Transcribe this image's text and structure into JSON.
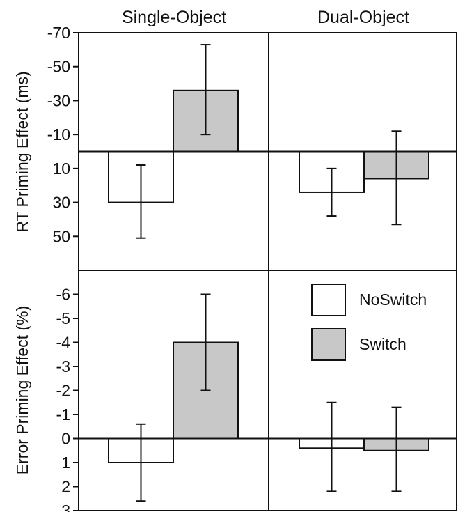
{
  "chart_data": {
    "type": "bar",
    "column_titles": [
      "Single-Object",
      "Dual-Object"
    ],
    "legend": {
      "placement": "upper-right of bottom-right panel",
      "entries": [
        {
          "name": "NoSwitch",
          "color": "#ffffff"
        },
        {
          "name": "Switch",
          "color": "#c8c8c8"
        }
      ]
    },
    "panels": [
      {
        "ylabel": "RT Priming Effect (ms)",
        "ylim": [
          -70,
          70
        ],
        "inverted": true,
        "yticks": [
          -70,
          -50,
          -30,
          -10,
          10,
          30,
          50
        ],
        "ytick_labels": [
          "-70",
          "-50",
          "-30",
          "-10",
          "10",
          "30",
          "50"
        ],
        "groups": [
          {
            "name": "Single-Object",
            "series": [
              {
                "name": "NoSwitch",
                "value": 30,
                "err_low": 51,
                "err_high": 8
              },
              {
                "name": "Switch",
                "value": -36,
                "err_low": -10,
                "err_high": -63
              }
            ]
          },
          {
            "name": "Dual-Object",
            "series": [
              {
                "name": "NoSwitch",
                "value": 24,
                "err_low": 38,
                "err_high": 10
              },
              {
                "name": "Switch",
                "value": 16,
                "err_low": 43,
                "err_high": -12
              }
            ]
          }
        ]
      },
      {
        "ylabel": "Error Priming Effect (%)",
        "ylim": [
          -7,
          3
        ],
        "inverted": true,
        "yticks": [
          -6,
          -5,
          -4,
          -3,
          -2,
          -1,
          0,
          1,
          2,
          3
        ],
        "ytick_labels": [
          "-6",
          "-5",
          "-4",
          "-3",
          "-2",
          "-1",
          "0",
          "1",
          "2",
          "3"
        ],
        "groups": [
          {
            "name": "Single-Object",
            "series": [
              {
                "name": "NoSwitch",
                "value": 1,
                "err_low": 2.6,
                "err_high": -0.6
              },
              {
                "name": "Switch",
                "value": -4,
                "err_low": -2,
                "err_high": -6
              }
            ]
          },
          {
            "name": "Dual-Object",
            "series": [
              {
                "name": "NoSwitch",
                "value": 0.4,
                "err_low": 2.2,
                "err_high": -1.5
              },
              {
                "name": "Switch",
                "value": 0.5,
                "err_low": 2.2,
                "err_high": -1.3
              }
            ]
          }
        ]
      }
    ]
  }
}
